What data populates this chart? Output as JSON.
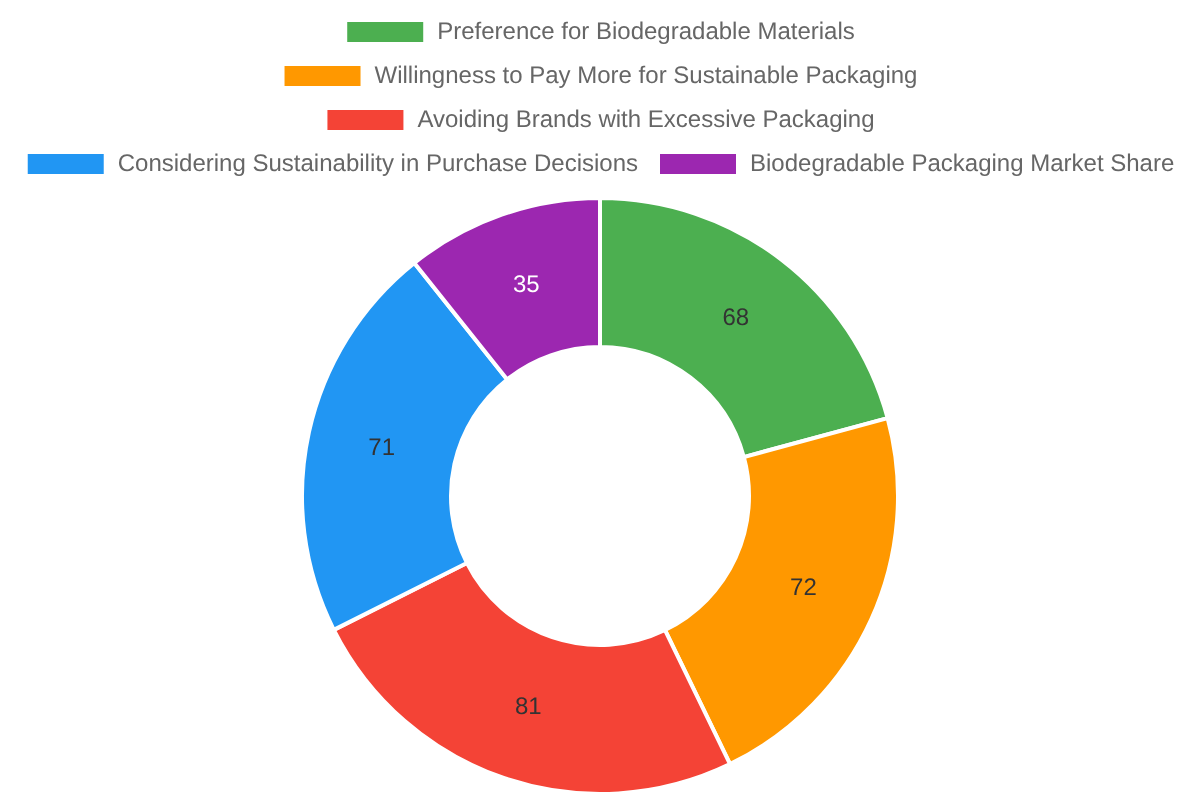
{
  "chart_data": {
    "type": "donut",
    "categories": [
      "Preference for Biodegradable Materials",
      "Willingness to Pay More for Sustainable Packaging",
      "Avoiding Brands with Excessive Packaging",
      "Considering Sustainability in Purchase Decisions",
      "Biodegradable Packaging Market Share"
    ],
    "values": [
      68,
      72,
      81,
      71,
      35
    ],
    "colors": [
      "#4caf50",
      "#ff9800",
      "#f44336",
      "#2196f3",
      "#9c27b0"
    ],
    "data_labels": true,
    "legend": "top"
  }
}
